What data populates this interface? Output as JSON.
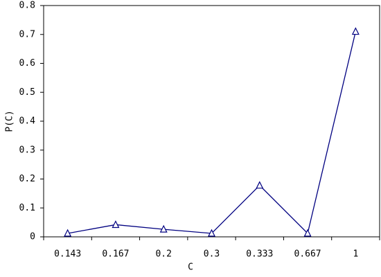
{
  "chart_data": {
    "type": "line",
    "x_label": "C",
    "y_label": "P(C)",
    "categories": [
      "0.143",
      "0.167",
      "0.2",
      "0.3",
      "0.333",
      "0.667",
      "1"
    ],
    "series": [
      {
        "color": "#000080",
        "values": [
          0.012,
          0.042,
          0.026,
          0.012,
          0.178,
          0.012,
          0.71
        ]
      }
    ],
    "ylim": [
      0,
      0.8
    ],
    "yticks": [
      0,
      0.1,
      0.2,
      0.3,
      0.4,
      0.5,
      0.6,
      0.7,
      0.8
    ],
    "marker": "open-triangle"
  }
}
